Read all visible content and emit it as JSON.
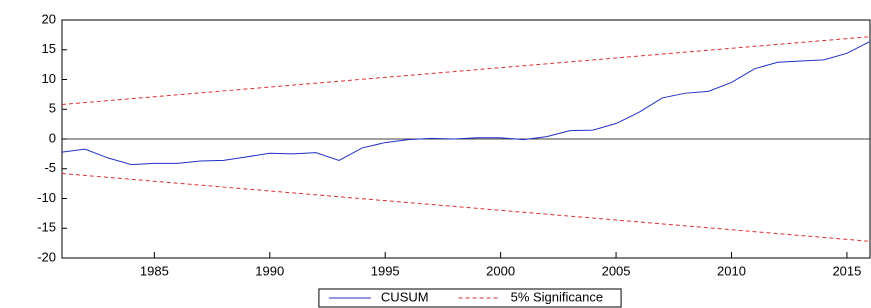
{
  "chart_data": {
    "type": "line",
    "xlim": [
      1981,
      2016
    ],
    "ylim": [
      -20,
      20
    ],
    "xticks": [
      1985,
      1990,
      1995,
      2000,
      2005,
      2010,
      2015
    ],
    "yticks": [
      -20,
      -15,
      -10,
      -5,
      0,
      5,
      10,
      15,
      20
    ],
    "zero_line": true,
    "legend": "bottom",
    "series": [
      {
        "name": "CUSUM",
        "color": "#2030c8",
        "dash": false,
        "x": [
          1981,
          1982,
          1983,
          1984,
          1985,
          1986,
          1987,
          1988,
          1989,
          1990,
          1991,
          1992,
          1993,
          1994,
          1995,
          1996,
          1997,
          1998,
          1999,
          2000,
          2001,
          2002,
          2003,
          2004,
          2005,
          2006,
          2007,
          2008,
          2009,
          2010,
          2011,
          2012,
          2013,
          2014,
          2015,
          2016
        ],
        "values": [
          -2.2,
          -1.7,
          -3.2,
          -4.3,
          -4.1,
          -4.1,
          -3.7,
          -3.6,
          -3.0,
          -2.4,
          -2.5,
          -2.3,
          -3.6,
          -1.5,
          -0.6,
          -0.1,
          0.1,
          0.0,
          0.2,
          0.2,
          -0.1,
          0.4,
          1.4,
          1.5,
          2.6,
          4.5,
          6.9,
          7.7,
          8.0,
          9.5,
          11.8,
          12.9,
          13.1,
          13.3,
          14.4,
          16.4
        ]
      },
      {
        "name": "5% Significance",
        "color": "#e03030",
        "dash": true,
        "x": [
          1981,
          2016
        ],
        "values": [
          5.8,
          17.2
        ]
      },
      {
        "name": null,
        "color": "#e03030",
        "dash": true,
        "x": [
          1981,
          2016
        ],
        "values": [
          -5.8,
          -17.2
        ]
      }
    ]
  }
}
